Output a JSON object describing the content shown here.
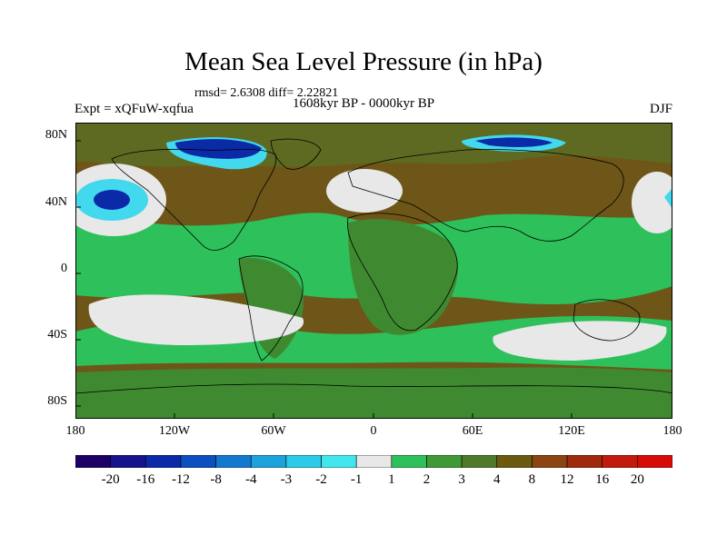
{
  "title": "Mean Sea Level Pressure (in hPa)",
  "stats": "rmsd= 2.6308 diff= 2.22821",
  "period": "1608kyr BP - 0000kyr BP",
  "experiment": "Expt = xQFuW-xqfua",
  "season": "DJF",
  "y_ticks": [
    "80N",
    "40N",
    "0",
    "40S",
    "80S"
  ],
  "x_ticks": [
    "180",
    "120W",
    "60W",
    "0",
    "60E",
    "120E",
    "180"
  ],
  "colorbar": {
    "labels": [
      "-20",
      "-16",
      "-12",
      "-8",
      "-4",
      "-3",
      "-2",
      "-1",
      "1",
      "2",
      "3",
      "4",
      "8",
      "12",
      "16",
      "20"
    ],
    "colors": [
      "#1d0066",
      "#16148c",
      "#0a2aa8",
      "#0d4fbe",
      "#1478cf",
      "#1da2dc",
      "#2ccbe8",
      "#42e6ef",
      "#e8e8e8",
      "#2ec05a",
      "#3f9a35",
      "#4f7a2a",
      "#6b5a10",
      "#8a4510",
      "#a02a0c",
      "#c21a0c",
      "#d80c06"
    ]
  },
  "colors": {
    "land_base": "#5e6a22",
    "ocean_brown": "#6e5618",
    "green_band": "#2ec05a",
    "dark_green": "#3f8a30",
    "near_zero": "#e8e8e8",
    "deep_blue": "#0a2aa8",
    "cyan": "#42d8ee"
  }
}
